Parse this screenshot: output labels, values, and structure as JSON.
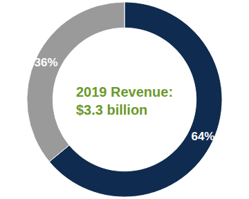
{
  "chart_data": {
    "type": "pie",
    "title": "2019 Revenue:",
    "subtitle": "$3.3 billion",
    "values": [
      64,
      36
    ],
    "value_labels": [
      "64%",
      "36%"
    ],
    "colors": [
      "#0f2b4f",
      "#9a9a9a"
    ],
    "data_labels": true
  }
}
